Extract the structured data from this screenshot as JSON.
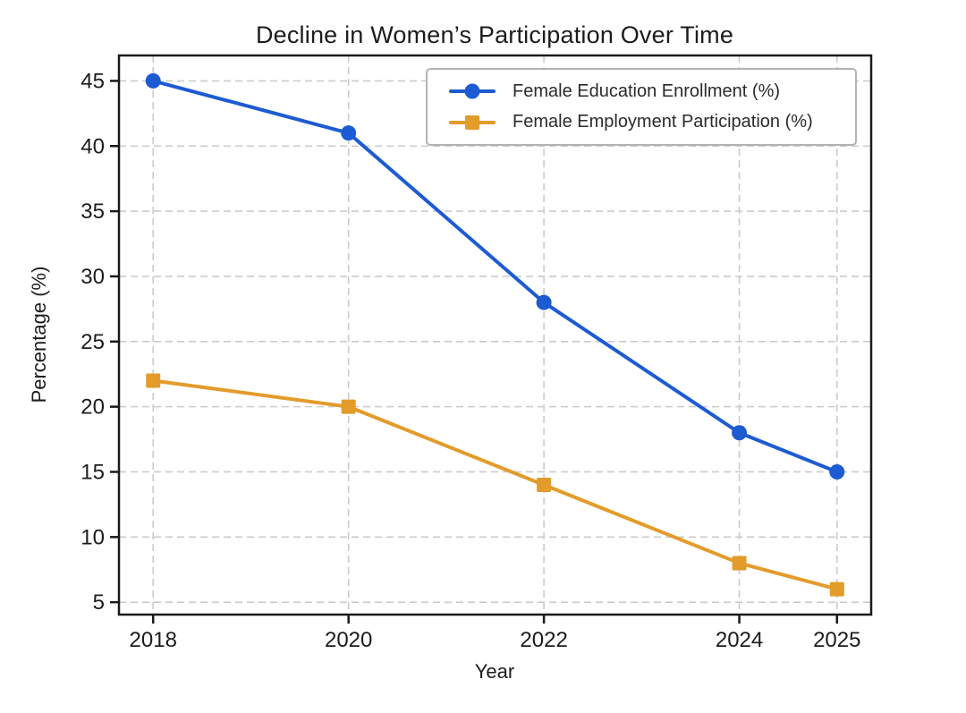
{
  "figure": {
    "background": "#ffffff"
  },
  "chart_data": {
    "type": "line",
    "title": "Decline in Women’s Participation Over Time",
    "xlabel": "Year",
    "ylabel": "Percentage (%)",
    "x": [
      2018,
      2020,
      2022,
      2024,
      2025
    ],
    "xtick_labels": [
      "2018",
      "2020",
      "2022",
      "2024",
      "2025"
    ],
    "yticks": [
      5,
      10,
      15,
      20,
      25,
      30,
      35,
      40,
      45
    ],
    "xlim": [
      2017.65,
      2025.35
    ],
    "ylim": [
      4.05,
      46.95
    ],
    "grid": true,
    "grid_style": "dashed",
    "legend_position": "upper right",
    "series": [
      {
        "name": "Female Education Enrollment (%)",
        "values": [
          45,
          41,
          28,
          18,
          15
        ],
        "color": "#1d5bd2",
        "marker": "circle"
      },
      {
        "name": "Female Employment Participation (%)",
        "values": [
          22,
          20,
          14,
          8,
          6
        ],
        "color": "#e39b2a",
        "marker": "square"
      }
    ],
    "colors": {
      "grid": "#cbcbcb",
      "axis": "#1a1a1a",
      "tick_label": "#1c1c1c",
      "legend_border": "#b3b3b3"
    }
  }
}
